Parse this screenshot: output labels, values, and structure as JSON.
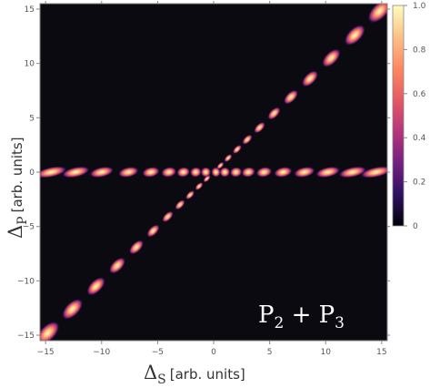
{
  "chart_data": {
    "type": "heatmap",
    "title": "",
    "xlabel": {
      "symbol": "Δ",
      "subscript": "S",
      "units": "[arb. units]"
    },
    "ylabel": {
      "symbol": "Δ",
      "subscript": "P",
      "units": "[arb. units]"
    },
    "xlim": [
      -15.5,
      15.5
    ],
    "ylim": [
      -15.5,
      15.5
    ],
    "x_ticks": [
      "−15",
      "−10",
      "−5",
      "0",
      "5",
      "10",
      "15"
    ],
    "x_tick_values": [
      -15,
      -10,
      -5,
      0,
      5,
      10,
      15
    ],
    "y_ticks": [
      "15",
      "10",
      "5",
      "0",
      "−5",
      "−10",
      "−15"
    ],
    "y_tick_values": [
      15,
      10,
      5,
      0,
      -5,
      -10,
      -15
    ],
    "colorbar": {
      "range": [
        0,
        1
      ],
      "ticks": [
        "1.0",
        "0.8",
        "0.6",
        "0.4",
        "0.2",
        "0"
      ],
      "tick_values": [
        1.0,
        0.8,
        0.6,
        0.4,
        0.2,
        0
      ],
      "colormap": [
        "#000004",
        "#2d1160",
        "#721f81",
        "#b5367a",
        "#e55964",
        "#fb8761",
        "#fec287",
        "#fcfdbf"
      ]
    },
    "annotation": {
      "main": "P",
      "sub1": "2",
      "op": " + ",
      "sub2": "3",
      "sep": "P"
    },
    "background": "#0a0a10",
    "features": [
      {
        "name": "diagonal band",
        "lobes_Delta_S": [
          -14.8,
          -12.6,
          -10.5,
          -8.6,
          -6.9,
          -5.4,
          -4.1,
          -3.0,
          -2.1,
          -1.3,
          -0.6,
          0.6,
          1.3,
          2.1,
          3.0,
          4.1,
          5.4,
          6.9,
          8.6,
          10.5,
          12.6,
          14.8
        ],
        "slope": 1.0
      },
      {
        "name": "horizontal band",
        "Delta_P": 0,
        "lobes_Delta_S": [
          -14.5,
          -12.3,
          -10.0,
          -7.6,
          -5.6,
          -4.0,
          -2.7,
          -1.6,
          -0.7,
          0.2,
          1.0,
          2.0,
          3.1,
          4.5,
          6.2,
          8.1,
          10.2,
          12.4,
          14.5
        ]
      }
    ]
  }
}
